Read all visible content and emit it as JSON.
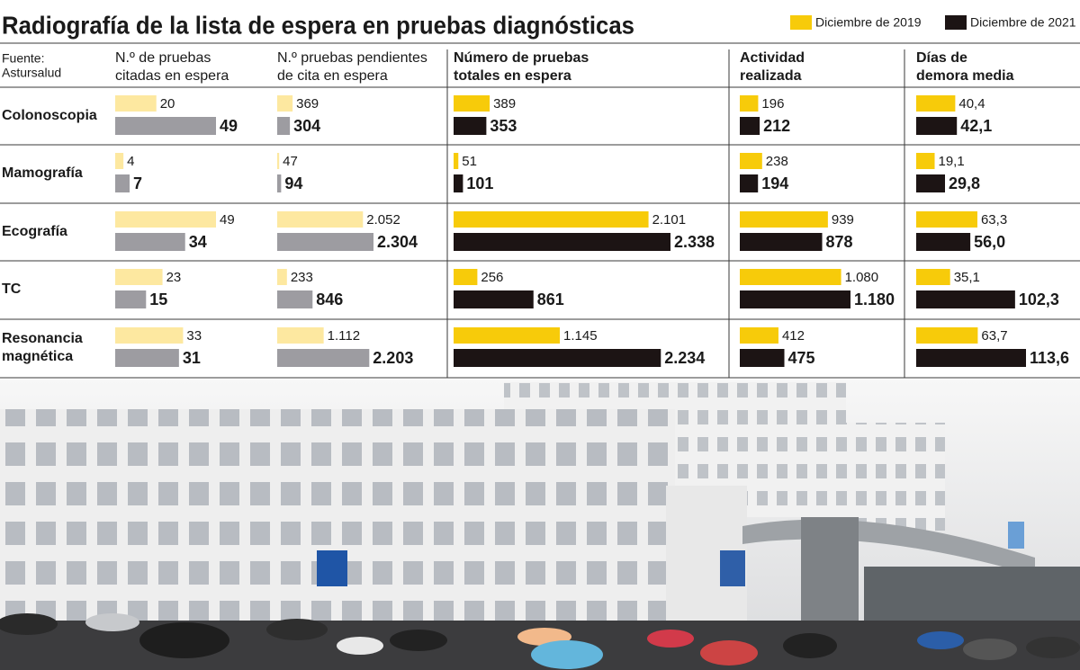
{
  "title": "Radiografía de la lista de espera en pruebas diagnósticas",
  "legend": [
    {
      "name": "Diciembre de 2019",
      "color": "#f7cb0a"
    },
    {
      "name": "Diciembre de 2021",
      "color": "#1c1414"
    }
  ],
  "source": [
    "Fuente:",
    "Astursalud"
  ],
  "categories": [
    [
      "Colonoscopia"
    ],
    [
      "Mamografía"
    ],
    [
      "Ecografía"
    ],
    [
      "TC"
    ],
    [
      "Resonancia",
      "magnética"
    ]
  ],
  "chart_data": [
    {
      "type": "bar",
      "title": [
        "N.º de pruebas",
        "citadas en espera"
      ],
      "series": [
        {
          "color": "#fde8a0",
          "values": [
            20,
            4,
            49,
            23,
            33
          ]
        },
        {
          "color": "#9d9ca1",
          "values": [
            49,
            7,
            34,
            15,
            31
          ]
        }
      ]
    },
    {
      "type": "bar",
      "title": [
        "N.º pruebas pendientes",
        "de cita en espera"
      ],
      "series": [
        {
          "color": "#fde8a0",
          "values": [
            369,
            47,
            2052,
            233,
            1112
          ],
          "value_labels": [
            "369",
            "47",
            "2.052",
            "233",
            "1.112"
          ]
        },
        {
          "color": "#9d9ca1",
          "values": [
            304,
            94,
            2304,
            846,
            2203
          ],
          "value_labels": [
            "304",
            "94",
            "2.304",
            "846",
            "2.203"
          ]
        }
      ]
    },
    {
      "type": "bar",
      "title": [
        "Número de pruebas",
        "totales en espera"
      ],
      "series": [
        {
          "color": "#f7cb0a",
          "values": [
            389,
            51,
            2101,
            256,
            1145
          ],
          "value_labels": [
            "389",
            "51",
            "2.101",
            "256",
            "1.145"
          ]
        },
        {
          "color": "#1c1414",
          "values": [
            353,
            101,
            2338,
            861,
            2234
          ],
          "value_labels": [
            "353",
            "101",
            "2.338",
            "861",
            "2.234"
          ]
        }
      ]
    },
    {
      "type": "bar",
      "title": [
        "Actividad",
        "realizada"
      ],
      "series": [
        {
          "color": "#f7cb0a",
          "values": [
            196,
            238,
            939,
            1080,
            412
          ],
          "value_labels": [
            "196",
            "238",
            "939",
            "1.080",
            "412"
          ]
        },
        {
          "color": "#1c1414",
          "values": [
            212,
            194,
            878,
            1180,
            475
          ],
          "value_labels": [
            "212",
            "194",
            "878",
            "1.180",
            "475"
          ]
        }
      ]
    },
    {
      "type": "bar",
      "title": [
        "Días de",
        "demora media"
      ],
      "series": [
        {
          "color": "#f7cb0a",
          "values": [
            40.4,
            19.1,
            63.3,
            35.1,
            63.7
          ],
          "value_labels": [
            "40,4",
            "19,1",
            "63,3",
            "35,1",
            "63,7"
          ]
        },
        {
          "color": "#1c1414",
          "values": [
            42.1,
            29.8,
            56.0,
            102.3,
            113.6
          ],
          "value_labels": [
            "42,1",
            "29,8",
            "56,0",
            "102,3",
            "113,6"
          ]
        }
      ]
    }
  ]
}
